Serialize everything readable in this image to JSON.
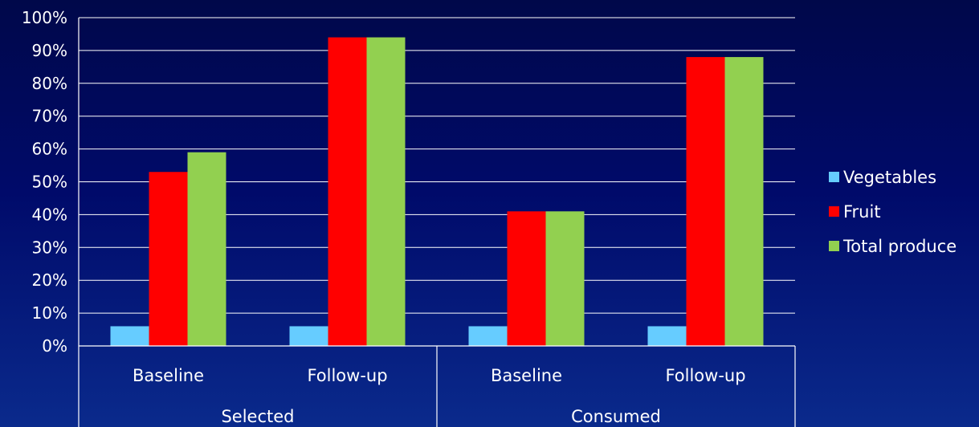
{
  "chart_data": {
    "type": "bar",
    "y_ticks": [
      "0%",
      "10%",
      "20%",
      "30%",
      "40%",
      "50%",
      "60%",
      "70%",
      "80%",
      "90%",
      "100%"
    ],
    "ylim": [
      0,
      100
    ],
    "grid": true,
    "legend_position": "right",
    "groups": [
      {
        "label": "Selected",
        "categories": [
          "Baseline",
          "Follow-up"
        ]
      },
      {
        "label": "Consumed",
        "categories": [
          "Baseline",
          "Follow-up"
        ]
      }
    ],
    "categories": [
      "Baseline",
      "Follow-up",
      "Baseline",
      "Follow-up"
    ],
    "series": [
      {
        "name": "Vegetables",
        "color": "#66ccff",
        "values": [
          6,
          6,
          6,
          6
        ]
      },
      {
        "name": "Fruit",
        "color": "#ff0000",
        "values": [
          53,
          94,
          41,
          88
        ]
      },
      {
        "name": "Total produce",
        "color": "#92d050",
        "values": [
          59,
          94,
          41,
          88
        ]
      }
    ]
  }
}
